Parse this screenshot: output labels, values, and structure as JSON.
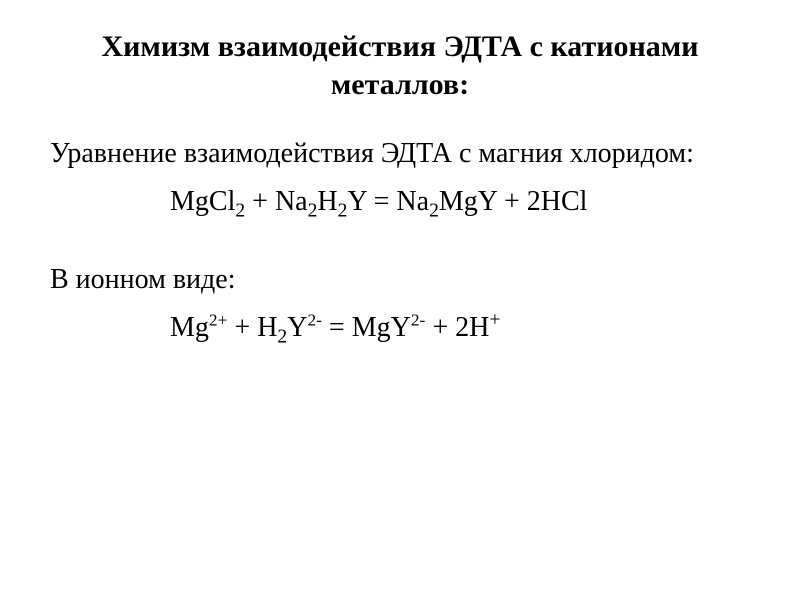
{
  "slide": {
    "background_color": "#ffffff",
    "text_color": "#000000",
    "font_family": "Times New Roman",
    "title": {
      "text": "Химизм взаимодействия ЭДТА с катионами металлов:",
      "fontsize": 30,
      "weight": "bold",
      "align": "center"
    },
    "body_fontsize": 28,
    "intro": "Уравнение взаимодействия ЭДТА с магния хлоридом:",
    "equation1": {
      "plain": "MgCl2 + Na2H2Y = Na2MgY + 2HCl",
      "lhs_a": "MgCl",
      "lhs_a_sub": "2",
      "plus1": " + ",
      "lhs_b": "Na",
      "lhs_b_sub1": "2",
      "lhs_b_mid": "H",
      "lhs_b_sub2": "2",
      "lhs_b_tail": "Y",
      "eq": " = ",
      "rhs_a": "Na",
      "rhs_a_sub": "2",
      "rhs_a_tail": "MgY",
      "plus2": " + ",
      "rhs_b": "2HCl"
    },
    "ionic_label": "В ионном виде:",
    "equation2": {
      "plain": "Mg2+ + H2Y2- = MgY2- + 2H+",
      "lhs_a": "Mg",
      "lhs_a_sup": "2+",
      "plus1": " + ",
      "lhs_b": "H",
      "lhs_b_sub": "2",
      "lhs_b_mid": "Y",
      "lhs_b_sup": "2-",
      "eq": " = ",
      "rhs_a": "MgY",
      "rhs_a_sup": "2-",
      "plus2": " + ",
      "rhs_b": "2H",
      "rhs_b_sup": "+"
    }
  }
}
